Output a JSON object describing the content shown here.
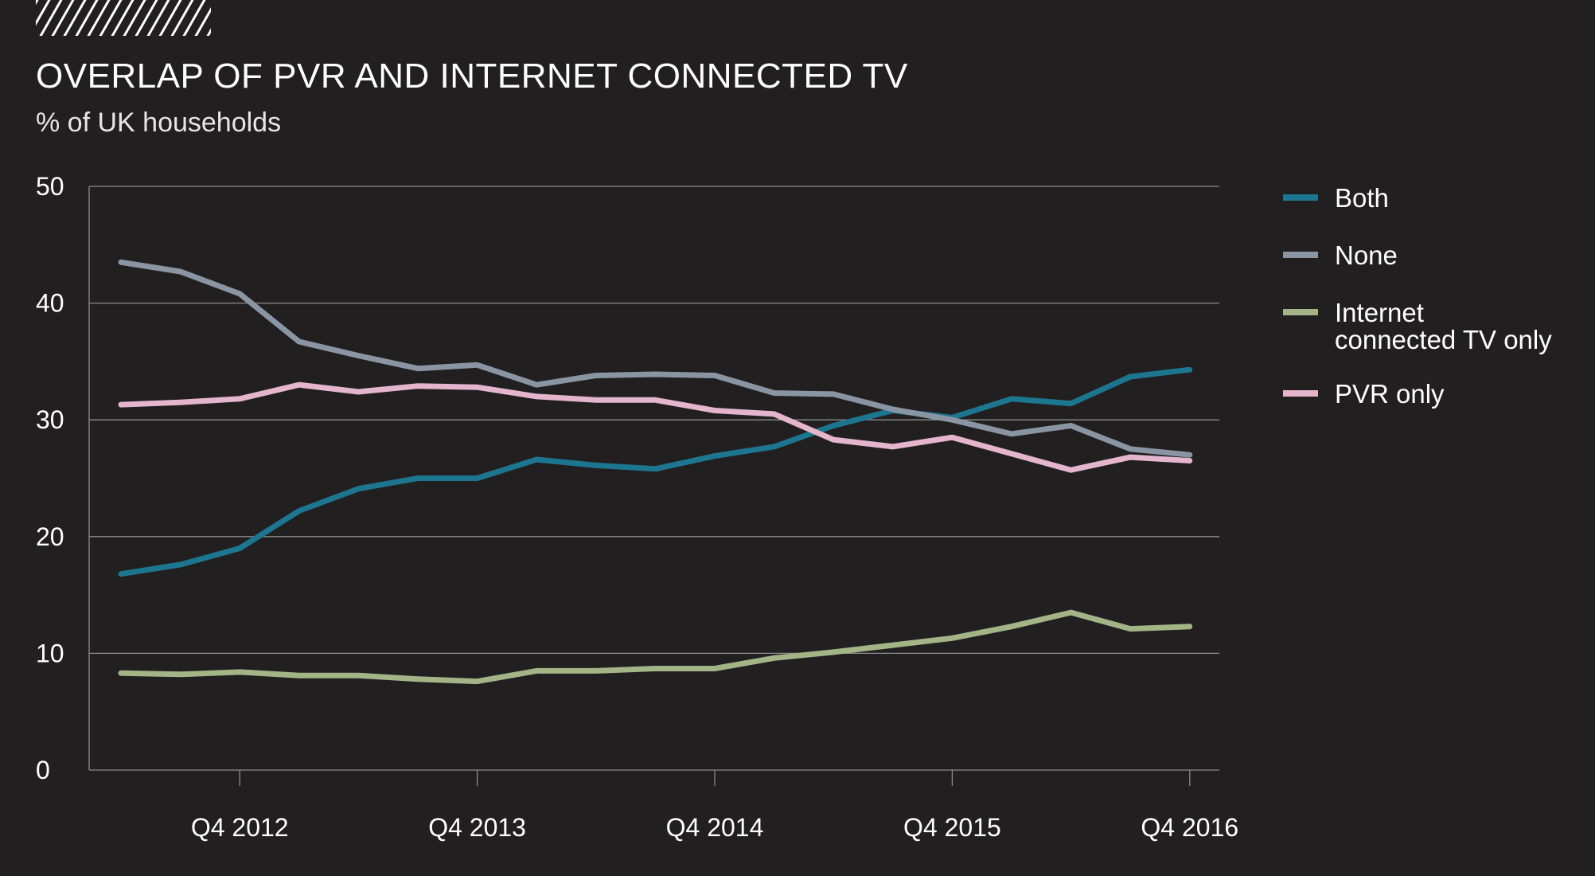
{
  "chart_data": {
    "type": "line",
    "title": "OVERLAP OF PVR AND INTERNET CONNECTED TV",
    "subtitle": "% of UK households",
    "xlabel": "",
    "ylabel": "",
    "ylim": [
      0,
      50
    ],
    "yticks": [
      "0",
      "10",
      "20",
      "30",
      "40",
      "50"
    ],
    "x": [
      "Q2 2012",
      "Q3 2012",
      "Q4 2012",
      "Q1 2013",
      "Q2 2013",
      "Q3 2013",
      "Q4 2013",
      "Q1 2014",
      "Q2 2014",
      "Q3 2014",
      "Q4 2014",
      "Q1 2015",
      "Q2 2015",
      "Q3 2015",
      "Q4 2015",
      "Q1 2016",
      "Q2 2016",
      "Q3 2016",
      "Q4 2016"
    ],
    "xtick_labels": [
      "Q4 2012",
      "Q4 2013",
      "Q4 2014",
      "Q4 2015",
      "Q4 2016"
    ],
    "grid": true,
    "legend_position": "right",
    "series": [
      {
        "name": "Both",
        "color": "#1d7690",
        "values": [
          16.8,
          17.6,
          19.0,
          22.2,
          24.1,
          25.0,
          25.0,
          26.6,
          26.1,
          25.8,
          26.9,
          27.7,
          29.5,
          30.8,
          30.2,
          31.8,
          31.4,
          33.7,
          34.3
        ]
      },
      {
        "name": "None",
        "color": "#8a95a3",
        "values": [
          43.5,
          42.7,
          40.8,
          36.7,
          35.5,
          34.4,
          34.7,
          33.0,
          33.8,
          33.9,
          33.8,
          32.3,
          32.2,
          30.9,
          30.0,
          28.8,
          29.5,
          27.5,
          27.0
        ]
      },
      {
        "name": "Internet\nconnected TV only",
        "color": "#a3b587",
        "values": [
          8.3,
          8.2,
          8.4,
          8.1,
          8.1,
          7.8,
          7.6,
          8.5,
          8.5,
          8.7,
          8.7,
          9.6,
          10.1,
          10.7,
          11.3,
          12.3,
          13.5,
          12.1,
          12.3
        ]
      },
      {
        "name": "PVR only",
        "color": "#e4b5cc",
        "values": [
          31.3,
          31.5,
          31.8,
          33.0,
          32.4,
          32.9,
          32.8,
          32.0,
          31.7,
          31.7,
          30.8,
          30.5,
          28.3,
          27.7,
          28.5,
          27.1,
          25.7,
          26.8,
          26.5
        ]
      }
    ]
  }
}
